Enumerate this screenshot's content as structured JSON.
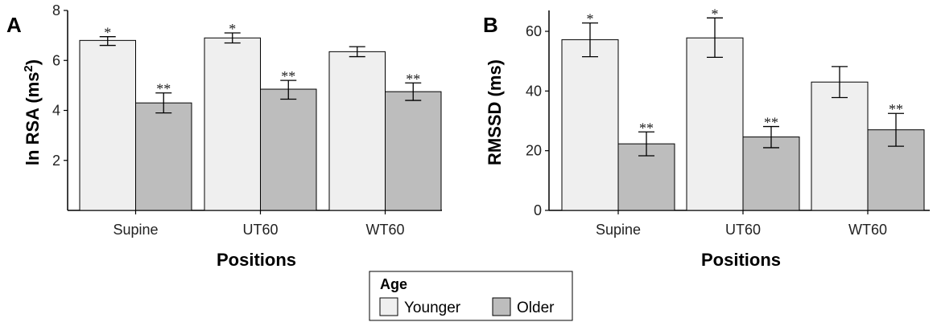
{
  "colors": {
    "younger": "#efefef",
    "older": "#bdbdbd",
    "stroke": "#000000"
  },
  "legend": {
    "title": "Age",
    "items": [
      {
        "label": "Younger",
        "color": "#efefef"
      },
      {
        "label": "Older",
        "color": "#bdbdbd"
      }
    ]
  },
  "chart_data": [
    {
      "panel": "A",
      "type": "bar",
      "xlabel": "Positions",
      "ylabel_main": "ln RSA (ms",
      "ylabel_sup": "2",
      "ylabel_end": ")",
      "ylim": [
        0,
        8
      ],
      "yticks": [
        2,
        4,
        6,
        8
      ],
      "categories": [
        "Supine",
        "UT60",
        "WT60"
      ],
      "series": [
        {
          "name": "Younger",
          "values": [
            6.8,
            6.9,
            6.35
          ],
          "err_low": [
            6.6,
            6.7,
            6.15
          ],
          "err_high": [
            6.95,
            7.1,
            6.55
          ],
          "annotations": [
            "*",
            "*",
            ""
          ]
        },
        {
          "name": "Older",
          "values": [
            4.3,
            4.85,
            4.75
          ],
          "err_low": [
            3.9,
            4.45,
            4.4
          ],
          "err_high": [
            4.7,
            5.2,
            5.1
          ],
          "annotations": [
            "**",
            "**",
            "**"
          ]
        }
      ]
    },
    {
      "panel": "B",
      "type": "bar",
      "xlabel": "Positions",
      "ylabel_main": "RMSSD (ms)",
      "ylabel_sup": "",
      "ylabel_end": "",
      "ylim": [
        0,
        67
      ],
      "yticks": [
        0,
        20,
        40,
        60
      ],
      "categories": [
        "Supine",
        "UT60",
        "WT60"
      ],
      "series": [
        {
          "name": "Younger",
          "values": [
            57.2,
            57.8,
            43.0
          ],
          "err_low": [
            51.5,
            51.3,
            37.8
          ],
          "err_high": [
            62.8,
            64.5,
            48.2
          ],
          "annotations": [
            "*",
            "*",
            ""
          ]
        },
        {
          "name": "Older",
          "values": [
            22.3,
            24.6,
            27.0
          ],
          "err_low": [
            18.3,
            21.0,
            21.5
          ],
          "err_high": [
            26.3,
            28.1,
            32.5
          ],
          "annotations": [
            "**",
            "**",
            "**"
          ]
        }
      ]
    }
  ]
}
